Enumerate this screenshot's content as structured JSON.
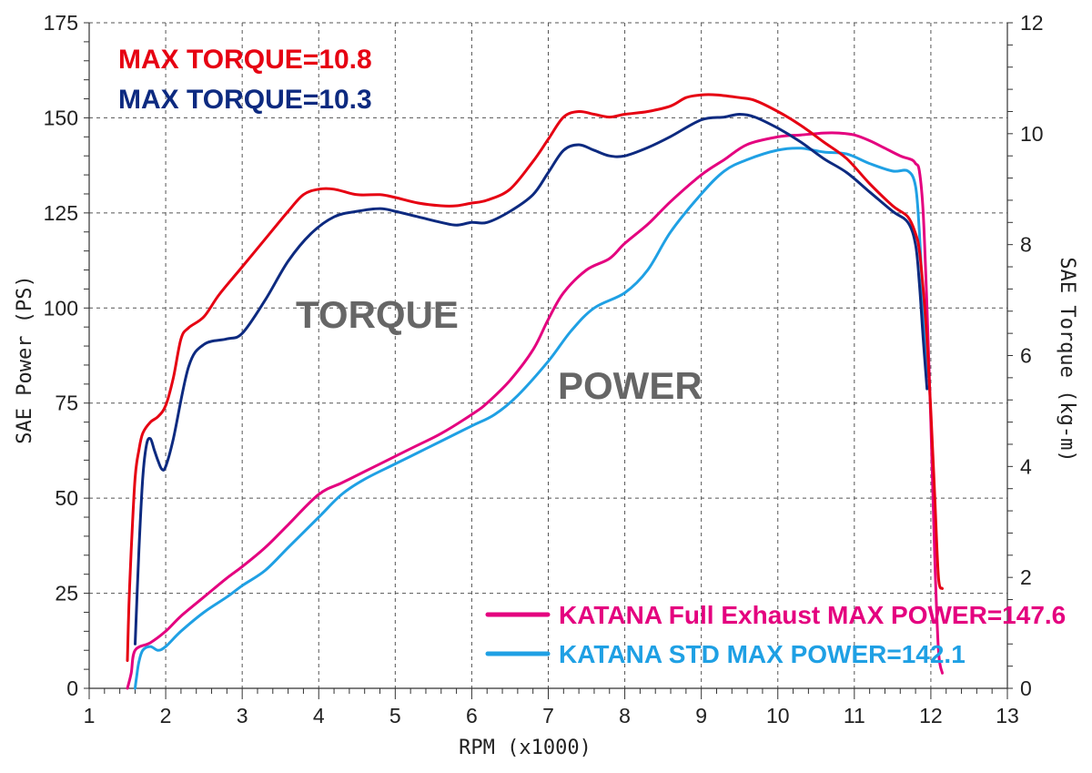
{
  "chart_data": {
    "type": "line",
    "xlabel": "RPM (x1000)",
    "ylabel_left": "SAE Power (PS)",
    "ylabel_right": "SAE Torque (kg-m)",
    "xlim": [
      1,
      13
    ],
    "ylim_left": [
      0,
      175
    ],
    "ylim_right": [
      0,
      12
    ],
    "x_ticks": [
      "1",
      "2",
      "3",
      "4",
      "5",
      "6",
      "7",
      "8",
      "9",
      "10",
      "11",
      "12",
      "13"
    ],
    "y_left_ticks": [
      "0",
      "25",
      "50",
      "75",
      "100",
      "125",
      "150",
      "175"
    ],
    "y_right_ticks": [
      "0",
      "2",
      "4",
      "6",
      "8",
      "10",
      "12"
    ],
    "grid": true,
    "annotations": {
      "torque_area": "TORQUE",
      "power_area": "POWER",
      "max_torque_full": "MAX TORQUE=10.8",
      "max_torque_std": "MAX TORQUE=10.3"
    },
    "colors": {
      "torque_full": "#e60012",
      "torque_std": "#0d2a80",
      "power_full": "#e4007f",
      "power_std": "#1fa0e4"
    },
    "series": [
      {
        "key": "power_full",
        "name": "KATANA Full Exhaust MAX POWER=147.6",
        "axis": "left",
        "x": [
          1.5,
          1.55,
          1.6,
          1.8,
          2.0,
          2.2,
          2.5,
          2.8,
          3.0,
          3.3,
          3.6,
          4.0,
          4.3,
          4.6,
          5.0,
          5.3,
          5.6,
          6.0,
          6.2,
          6.5,
          6.8,
          7.0,
          7.2,
          7.5,
          7.8,
          8.0,
          8.3,
          8.6,
          9.0,
          9.3,
          9.6,
          10.0,
          10.3,
          10.6,
          10.8,
          11.0,
          11.2,
          11.4,
          11.6,
          11.75,
          11.8,
          11.85,
          11.9,
          11.95,
          12.0,
          12.05,
          12.1,
          12.15
        ],
        "values": [
          0,
          4,
          10,
          12,
          15,
          19,
          24,
          29,
          32,
          37,
          43,
          51,
          54,
          57,
          61,
          64,
          67,
          72,
          75,
          81,
          89,
          97,
          104,
          110,
          113,
          117,
          122,
          128,
          135,
          139,
          143,
          145,
          145.5,
          146,
          146,
          145.5,
          144,
          142,
          140,
          139,
          138,
          136,
          125,
          100,
          70,
          35,
          10,
          4
        ]
      },
      {
        "key": "power_std",
        "name": "KATANA STD MAX POWER=142.1",
        "axis": "left",
        "x": [
          1.6,
          1.62,
          1.65,
          1.7,
          1.8,
          1.9,
          2.0,
          2.2,
          2.5,
          2.8,
          3.0,
          3.3,
          3.6,
          4.0,
          4.3,
          4.6,
          5.0,
          5.3,
          5.6,
          6.0,
          6.3,
          6.6,
          7.0,
          7.3,
          7.6,
          8.0,
          8.3,
          8.6,
          9.0,
          9.3,
          9.6,
          10.0,
          10.3,
          10.6,
          10.9,
          11.2,
          11.5,
          11.7,
          11.8,
          11.85,
          11.9,
          11.95
        ],
        "values": [
          0,
          3,
          7,
          10,
          11,
          10,
          11,
          15,
          20,
          24,
          27,
          31,
          37,
          45,
          51,
          55,
          59,
          62,
          65,
          69,
          72,
          77,
          86,
          94,
          100,
          104,
          110,
          120,
          130,
          136,
          139,
          141.5,
          142,
          141,
          140.5,
          138,
          136,
          136,
          132,
          120,
          100,
          82
        ]
      },
      {
        "key": "torque_full",
        "name": "MAX TORQUE=10.8",
        "axis": "right",
        "x": [
          1.5,
          1.52,
          1.55,
          1.6,
          1.65,
          1.7,
          1.8,
          1.9,
          2.0,
          2.1,
          2.2,
          2.3,
          2.5,
          2.7,
          3.0,
          3.3,
          3.6,
          3.8,
          4.0,
          4.2,
          4.5,
          4.8,
          5.0,
          5.3,
          5.6,
          5.8,
          6.0,
          6.2,
          6.5,
          6.8,
          7.0,
          7.2,
          7.4,
          7.6,
          7.8,
          8.0,
          8.3,
          8.6,
          8.8,
          9.0,
          9.2,
          9.5,
          9.7,
          10.0,
          10.3,
          10.6,
          10.9,
          11.2,
          11.5,
          11.7,
          11.8,
          11.85,
          11.9,
          11.95,
          12.0,
          12.05,
          12.1,
          12.15
        ],
        "values": [
          0.5,
          1.5,
          2.5,
          3.8,
          4.3,
          4.6,
          4.8,
          4.9,
          5.1,
          5.6,
          6.3,
          6.5,
          6.7,
          7.1,
          7.6,
          8.1,
          8.6,
          8.9,
          9.0,
          9.0,
          8.9,
          8.9,
          8.85,
          8.75,
          8.7,
          8.7,
          8.75,
          8.8,
          9.0,
          9.5,
          9.9,
          10.3,
          10.4,
          10.35,
          10.3,
          10.35,
          10.4,
          10.5,
          10.65,
          10.7,
          10.7,
          10.65,
          10.6,
          10.4,
          10.15,
          9.85,
          9.55,
          9.1,
          8.7,
          8.5,
          8.2,
          7.9,
          7.2,
          6.3,
          5.0,
          3.5,
          2.0,
          1.8
        ]
      },
      {
        "key": "torque_std",
        "name": "MAX TORQUE=10.3",
        "axis": "right",
        "x": [
          1.6,
          1.65,
          1.7,
          1.75,
          1.8,
          1.85,
          1.9,
          1.95,
          2.0,
          2.1,
          2.3,
          2.5,
          2.8,
          3.0,
          3.3,
          3.6,
          3.9,
          4.2,
          4.5,
          4.8,
          5.0,
          5.3,
          5.6,
          5.8,
          6.0,
          6.2,
          6.5,
          6.8,
          7.0,
          7.2,
          7.4,
          7.6,
          7.8,
          8.0,
          8.3,
          8.6,
          9.0,
          9.3,
          9.5,
          9.7,
          10.0,
          10.3,
          10.6,
          10.9,
          11.2,
          11.5,
          11.7,
          11.8,
          11.85,
          11.9,
          11.95
        ],
        "values": [
          0.8,
          2.5,
          3.8,
          4.4,
          4.5,
          4.3,
          4.1,
          3.95,
          4.0,
          4.5,
          5.8,
          6.2,
          6.3,
          6.4,
          7.0,
          7.7,
          8.2,
          8.5,
          8.6,
          8.65,
          8.6,
          8.5,
          8.4,
          8.35,
          8.4,
          8.4,
          8.6,
          8.9,
          9.3,
          9.7,
          9.8,
          9.7,
          9.6,
          9.6,
          9.75,
          9.95,
          10.25,
          10.3,
          10.35,
          10.3,
          10.1,
          9.85,
          9.55,
          9.3,
          8.95,
          8.6,
          8.4,
          8.0,
          7.3,
          6.3,
          5.4
        ]
      }
    ],
    "legend": [
      {
        "key": "power_full",
        "label": "KATANA Full Exhaust MAX POWER=147.6"
      },
      {
        "key": "power_std",
        "label": "KATANA STD MAX POWER=142.1"
      }
    ]
  }
}
